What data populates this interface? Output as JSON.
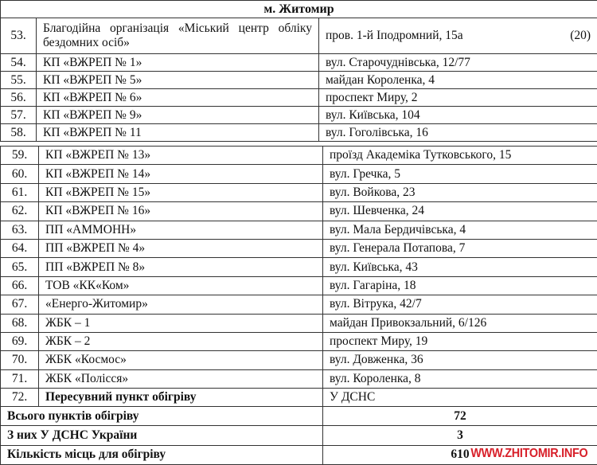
{
  "city_header": "м. Житомир",
  "first_row": {
    "num": "53.",
    "name": "Благодійна організація «Міський центр обліку бездомних осіб»",
    "address": "пров. 1-й Іподромний, 15а",
    "capacity": "(20)"
  },
  "rows_a": [
    {
      "num": "54.",
      "name": "КП «ВЖРЕП № 1»",
      "address": "вул. Старочуднівська, 12/77"
    },
    {
      "num": "55.",
      "name": "КП «ВЖРЕП № 5»",
      "address": "майдан Короленка, 4"
    },
    {
      "num": "56.",
      "name": "КП «ВЖРЕП № 6»",
      "address": "проспект Миру, 2"
    },
    {
      "num": "57.",
      "name": "КП «ВЖРЕП № 9»",
      "address": "вул. Київська, 104"
    },
    {
      "num": "58.",
      "name": "КП «ВЖРЕП № 11",
      "address": "вул. Гоголівська, 16"
    }
  ],
  "rows_b": [
    {
      "num": "59.",
      "name": "КП «ВЖРЕП № 13»",
      "address": "проїзд Академіка Тутковського, 15"
    },
    {
      "num": "60.",
      "name": "КП «ВЖРЕП № 14»",
      "address": "вул. Гречка, 5"
    },
    {
      "num": "61.",
      "name": "КП «ВЖРЕП № 15»",
      "address": "вул. Войкова, 23"
    },
    {
      "num": "62.",
      "name": "КП «ВЖРЕП № 16»",
      "address": "вул. Шевченка, 24"
    },
    {
      "num": "63.",
      "name": "ПП «АММОНН»",
      "address": "вул. Мала Бердичівська, 4"
    },
    {
      "num": "64.",
      "name": "ПП «ВЖРЕП № 4»",
      "address": "вул. Генерала Потапова, 7"
    },
    {
      "num": "65.",
      "name": "ПП «ВЖРЕП № 8»",
      "address": "вул. Київська, 43"
    },
    {
      "num": "66.",
      "name": "ТОВ «КК«Ком»",
      "address": "вул. Гагаріна, 18"
    },
    {
      "num": "67.",
      "name": "«Енерго-Житомир»",
      "address": "вул. Вітрука, 42/7"
    },
    {
      "num": "68.",
      "name": "ЖБК – 1",
      "address": "майдан Привокзальний, 6/126"
    },
    {
      "num": "69.",
      "name": "ЖБК – 2",
      "address": "проспект Миру, 19"
    },
    {
      "num": "70.",
      "name": "ЖБК «Космос»",
      "address": "вул. Довженка, 36"
    },
    {
      "num": "71.",
      "name": "ЖБК «Полісся»",
      "address": "вул. Короленка, 8"
    }
  ],
  "last_row": {
    "num": "72.",
    "name": "Пересувний пункт обігріву",
    "address": "У ДСНС"
  },
  "summary": [
    {
      "label": "Всього пунктів обігріву",
      "value": "72"
    },
    {
      "label": "З них У ДСНС України",
      "value": "3"
    },
    {
      "label": "Кількість місць для обігріву",
      "value": "610"
    }
  ],
  "watermark": "WWW.ZHITOMIR.INFO"
}
